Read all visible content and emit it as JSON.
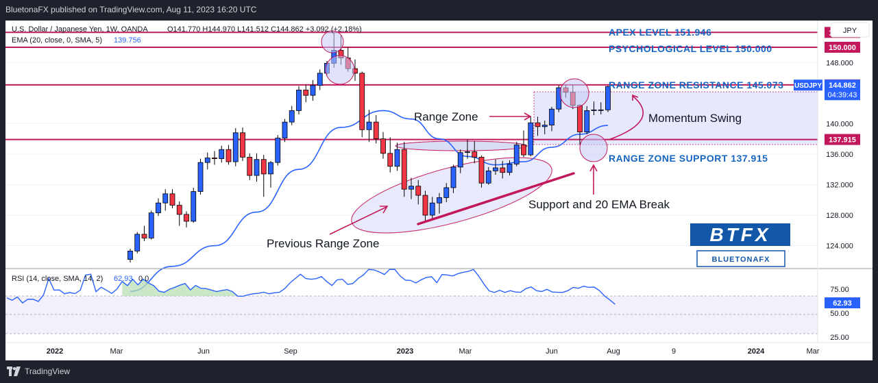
{
  "publisher_line": "BluetonaFX published on TradingView.com, Aug 11, 2023 16:20 UTC",
  "footer_brand": "TradingView",
  "currency_button": "JPY",
  "legend": {
    "title": "U.S. Dollar / Japanese Yen, 1W, OANDA",
    "ohlc": "O141.770 H144.970 L141.512 C144.862 +3.092 (+2.18%)",
    "ema_label": "EMA (20, close, 0, SMA, 5)",
    "ema_value": "139.756"
  },
  "rsi_legend": {
    "label": "RSI (14, close, SMA, 14, 2)",
    "value": "62.93",
    "extra": "0 0"
  },
  "colors": {
    "up": "#2962ff",
    "down": "#f23645",
    "ema": "#2962ff",
    "level_line": "#c2185b",
    "annotation_text": "#1565c0",
    "zone_fill": "#e6e8fb",
    "rsi_line": "#2962ff"
  },
  "annotations": {
    "apex": "APEX LEVEL 151.946",
    "psych": "PSYCHOLOGICAL LEVEL 150.000",
    "resistance": "RANGE ZONE RESISTANCE 145.073",
    "support": "RANGE ZONE SUPPORT 137.915",
    "range_zone": "Range Zone",
    "momentum": "Momentum Swing",
    "support_break": "Support and 20 EMA Break",
    "previous_zone": "Previous Range Zone"
  },
  "logo": {
    "main": "BTFX",
    "sub": "BLUETONAFX"
  },
  "chart_data": [
    {
      "type": "candlestick",
      "symbol_badge": "USDJPY",
      "countdown": "04:39:43",
      "ylim": [
        121,
        153.5
      ],
      "y_ticks": [
        "124.000",
        "128.000",
        "132.000",
        "136.000",
        "140.000",
        "148.000"
      ],
      "x_labels": [
        "2022",
        "Mar",
        "Jun",
        "Sep",
        "2023",
        "Mar",
        "Jun",
        "Aug",
        "9",
        "2024",
        "Mar"
      ],
      "horizontal_levels": [
        {
          "value": 151.946,
          "label": "151.946"
        },
        {
          "value": 150.0,
          "label": "150.000"
        },
        {
          "value": 145.073,
          "label": "145.073"
        },
        {
          "value": 137.915,
          "label": "137.915"
        }
      ],
      "last_price": {
        "value": 144.862,
        "label": "144.862"
      },
      "candles": [
        [
          122.2,
          123.6,
          121.8,
          123.3
        ],
        [
          123.3,
          125.8,
          123.0,
          125.5
        ],
        [
          125.5,
          126.6,
          124.6,
          125.0
        ],
        [
          125.0,
          128.6,
          124.8,
          128.3
        ],
        [
          128.3,
          130.2,
          127.9,
          129.6
        ],
        [
          129.6,
          131.4,
          128.6,
          130.8
        ],
        [
          130.8,
          131.4,
          128.9,
          129.3
        ],
        [
          129.3,
          129.8,
          126.6,
          128.1
        ],
        [
          128.1,
          128.5,
          126.4,
          127.2
        ],
        [
          127.2,
          131.6,
          127.0,
          131.1
        ],
        [
          131.1,
          135.4,
          130.7,
          134.9
        ],
        [
          134.9,
          136.2,
          134.0,
          135.5
        ],
        [
          135.5,
          136.4,
          134.6,
          135.4
        ],
        [
          135.4,
          137.1,
          134.9,
          136.6
        ],
        [
          136.6,
          137.2,
          134.6,
          135.0
        ],
        [
          135.0,
          139.4,
          134.4,
          138.8
        ],
        [
          138.8,
          139.5,
          135.1,
          135.6
        ],
        [
          135.6,
          136.1,
          132.6,
          133.2
        ],
        [
          133.2,
          136.1,
          132.4,
          135.3
        ],
        [
          135.3,
          135.9,
          130.4,
          133.4
        ],
        [
          133.4,
          135.1,
          131.6,
          134.9
        ],
        [
          134.9,
          138.5,
          134.5,
          138.1
        ],
        [
          138.1,
          140.6,
          137.6,
          140.2
        ],
        [
          140.2,
          142.3,
          139.8,
          141.7
        ],
        [
          141.7,
          144.9,
          141.2,
          144.4
        ],
        [
          144.4,
          145.1,
          142.8,
          143.7
        ],
        [
          143.7,
          145.7,
          143.0,
          145.0
        ],
        [
          145.0,
          147.1,
          144.4,
          146.6
        ],
        [
          146.6,
          148.2,
          146.3,
          147.9
        ],
        [
          147.9,
          151.9,
          147.3,
          149.6
        ],
        [
          149.6,
          151.6,
          147.7,
          148.6
        ],
        [
          148.6,
          150.0,
          146.8,
          147.2
        ],
        [
          147.2,
          148.4,
          145.6,
          146.6
        ],
        [
          146.6,
          146.8,
          138.2,
          139.2
        ],
        [
          139.2,
          141.8,
          137.6,
          140.2
        ],
        [
          140.2,
          141.1,
          137.4,
          138.0
        ],
        [
          138.0,
          138.9,
          135.4,
          136.1
        ],
        [
          136.1,
          138.2,
          133.6,
          134.4
        ],
        [
          134.4,
          137.5,
          133.8,
          136.6
        ],
        [
          136.6,
          137.6,
          130.4,
          131.4
        ],
        [
          131.4,
          132.9,
          130.1,
          131.8
        ],
        [
          131.8,
          132.6,
          129.4,
          130.6
        ],
        [
          130.6,
          131.2,
          127.2,
          128.0
        ],
        [
          128.0,
          130.4,
          127.5,
          129.6
        ],
        [
          129.6,
          130.9,
          128.2,
          130.3
        ],
        [
          130.3,
          132.2,
          129.7,
          131.6
        ],
        [
          131.6,
          134.6,
          130.9,
          134.3
        ],
        [
          134.3,
          136.6,
          133.5,
          136.2
        ],
        [
          136.2,
          137.9,
          135.4,
          136.3
        ],
        [
          136.3,
          137.7,
          134.8,
          135.6
        ],
        [
          135.6,
          135.8,
          131.6,
          132.2
        ],
        [
          132.2,
          134.3,
          132.0,
          133.8
        ],
        [
          133.8,
          135.3,
          133.3,
          134.2
        ],
        [
          134.2,
          135.1,
          132.8,
          133.6
        ],
        [
          133.6,
          135.2,
          133.2,
          134.7
        ],
        [
          134.7,
          137.6,
          134.4,
          137.2
        ],
        [
          137.2,
          139.1,
          135.6,
          135.9
        ],
        [
          135.9,
          140.9,
          135.7,
          140.1
        ],
        [
          140.1,
          140.9,
          138.4,
          139.6
        ],
        [
          139.6,
          140.4,
          138.6,
          139.8
        ],
        [
          139.8,
          142.2,
          139.0,
          141.9
        ],
        [
          141.9,
          145.0,
          141.5,
          144.7
        ],
        [
          144.7,
          145.1,
          143.4,
          144.1
        ],
        [
          144.1,
          145.1,
          141.9,
          142.4
        ],
        [
          142.4,
          142.5,
          137.2,
          138.9
        ],
        [
          138.9,
          142.3,
          138.6,
          141.7
        ],
        [
          141.7,
          142.9,
          141.1,
          141.8
        ],
        [
          141.8,
          142.8,
          141.2,
          141.8
        ],
        [
          141.8,
          144.97,
          141.5,
          144.86
        ]
      ],
      "ema20": [
        [
          0,
          118.0
        ],
        [
          6,
          121.3
        ],
        [
          12,
          124.0
        ],
        [
          18,
          128.4
        ],
        [
          24,
          134.0
        ],
        [
          30,
          139.5
        ],
        [
          36,
          141.7
        ],
        [
          40,
          140.6
        ],
        [
          44,
          138.0
        ],
        [
          48,
          135.7
        ],
        [
          52,
          134.6
        ],
        [
          56,
          135.0
        ],
        [
          60,
          136.9
        ],
        [
          64,
          138.6
        ],
        [
          68,
          139.756
        ]
      ]
    },
    {
      "type": "line",
      "title": "RSI",
      "ylim": [
        25,
        87
      ],
      "y_ticks": [
        "75.00",
        "50.00",
        "25.00"
      ],
      "bands": [
        70,
        60,
        30
      ],
      "last_value": "62.93",
      "values": [
        [
          0,
          67.2
        ],
        [
          3,
          65.6
        ],
        [
          6,
          67.8
        ],
        [
          9,
          63.8
        ],
        [
          12,
          66.3
        ],
        [
          15,
          66.3
        ],
        [
          18,
          64.8
        ],
        [
          21,
          69.3
        ],
        [
          24,
          80.3
        ],
        [
          27,
          72.4
        ],
        [
          30,
          72.6
        ],
        [
          33,
          70.0
        ],
        [
          36,
          70.8
        ],
        [
          39,
          70.1
        ],
        [
          42,
          72.4
        ],
        [
          45,
          82.6
        ],
        [
          48,
          83.2
        ],
        [
          51,
          71.4
        ],
        [
          54,
          74.4
        ],
        [
          57,
          72.4
        ],
        [
          60,
          70.2
        ],
        [
          63,
          73.2
        ],
        [
          66,
          78.3
        ],
        [
          69,
          75.5
        ],
        [
          72,
          79.8
        ],
        [
          75,
          76.0
        ],
        [
          78,
          79.8
        ],
        [
          81,
          77.3
        ],
        [
          84,
          75.5
        ],
        [
          87,
          71.8
        ],
        [
          90,
          71.0
        ],
        [
          93,
          73.0
        ],
        [
          96,
          74.3
        ],
        [
          99,
          75.8
        ],
        [
          102,
          76.9
        ],
        [
          105,
          72.6
        ],
        [
          108,
          75.6
        ],
        [
          111,
          73.7
        ],
        [
          114,
          73.5
        ],
        [
          117,
          72.5
        ],
        [
          120,
          71.5
        ],
        [
          123,
          72.2
        ],
        [
          126,
          72.8
        ],
        [
          129,
          71.5
        ],
        [
          132,
          68.4
        ],
        [
          135,
          68.3
        ],
        [
          138,
          69.3
        ],
        [
          141,
          70.0
        ],
        [
          144,
          70.3
        ],
        [
          147,
          71.0
        ],
        [
          150,
          70.0
        ],
        [
          153,
          70.6
        ],
        [
          156,
          71.0
        ],
        [
          159,
          73.5
        ],
        [
          162,
          77.3
        ],
        [
          165,
          80.3
        ],
        [
          168,
          83.2
        ],
        [
          171,
          80.3
        ],
        [
          174,
          79.8
        ],
        [
          177,
          80.2
        ],
        [
          180,
          81.6
        ],
        [
          183,
          78.3
        ],
        [
          186,
          75.6
        ],
        [
          189,
          79.4
        ],
        [
          192,
          79.8
        ],
        [
          195,
          76.3
        ],
        [
          198,
          76.9
        ],
        [
          201,
          80.3
        ],
        [
          204,
          82.7
        ],
        [
          207,
          86.4
        ],
        [
          210,
          86.1
        ],
        [
          213,
          84.8
        ],
        [
          216,
          83.0
        ],
        [
          219,
          86.4
        ],
        [
          222,
          86.4
        ],
        [
          225,
          82.0
        ],
        [
          228,
          79.2
        ],
        [
          231,
          79.0
        ],
        [
          234,
          77.3
        ],
        [
          237,
          79.4
        ],
        [
          240,
          81.0
        ],
        [
          243,
          81.5
        ],
        [
          246,
          77.5
        ],
        [
          249,
          83.0
        ],
        [
          252,
          82.7
        ],
        [
          255,
          82.0
        ],
        [
          258,
          83.5
        ],
        [
          261,
          84.5
        ],
        [
          264,
          85.1
        ],
        [
          267,
          86.4
        ],
        [
          270,
          81.9
        ],
        [
          273,
          76.5
        ],
        [
          276,
          71.9
        ],
        [
          279,
          70.9
        ],
        [
          282,
          72.3
        ],
        [
          285,
          70.9
        ],
        [
          288,
          72.1
        ],
        [
          291,
          71.2
        ],
        [
          294,
          71.0
        ],
        [
          297,
          73.5
        ],
        [
          300,
          74.6
        ],
        [
          303,
          72.1
        ],
        [
          306,
          71.5
        ],
        [
          309,
          73.0
        ],
        [
          312,
          71.2
        ],
        [
          315,
          71.0
        ],
        [
          318,
          70.9
        ],
        [
          321,
          72.1
        ],
        [
          324,
          74.3
        ],
        [
          327,
          73.7
        ],
        [
          330,
          75.1
        ],
        [
          333,
          74.3
        ],
        [
          336,
          74.5
        ],
        [
          339,
          72.2
        ],
        [
          342,
          68.5
        ],
        [
          345,
          65.8
        ],
        [
          348,
          62.9
        ]
      ]
    }
  ]
}
